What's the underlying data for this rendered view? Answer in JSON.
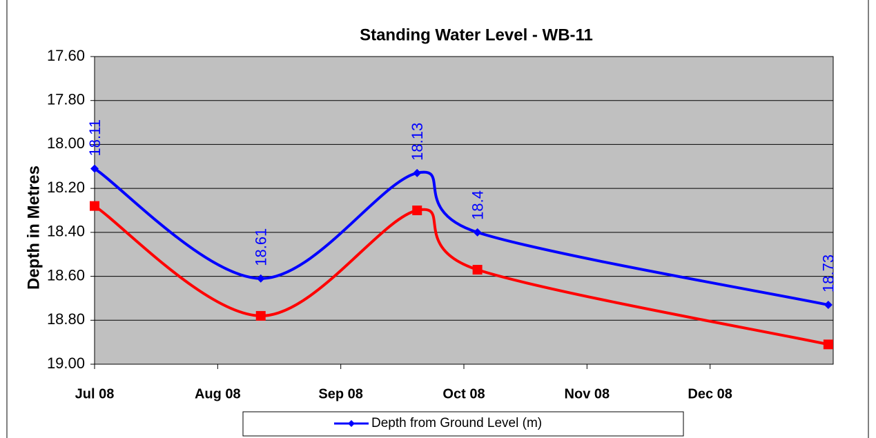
{
  "chart_data": {
    "type": "line",
    "title": "Standing Water Level - WB-11",
    "y_label": "Depth in Metres",
    "x": [
      0,
      1.35,
      2.62,
      3.11,
      5.96
    ],
    "xlim": [
      0,
      6
    ],
    "xticks": [
      {
        "value": 0,
        "label": "Jul 08"
      },
      {
        "value": 1,
        "label": "Aug 08"
      },
      {
        "value": 2,
        "label": "Sep 08"
      },
      {
        "value": 3,
        "label": "Oct 08"
      },
      {
        "value": 4,
        "label": "Nov 08"
      },
      {
        "value": 5,
        "label": "Dec 08"
      }
    ],
    "ylim": [
      17.6,
      19.0
    ],
    "y_inverted": true,
    "yticks": [
      {
        "value": 17.6,
        "label": "17.60"
      },
      {
        "value": 17.8,
        "label": "17.80"
      },
      {
        "value": 18.0,
        "label": "18.00"
      },
      {
        "value": 18.2,
        "label": "18.20"
      },
      {
        "value": 18.4,
        "label": "18.40"
      },
      {
        "value": 18.6,
        "label": "18.60"
      },
      {
        "value": 18.8,
        "label": "18.80"
      },
      {
        "value": 19.0,
        "label": "19.00"
      }
    ],
    "grid": true,
    "series": [
      {
        "name": "Depth from Ground Level (m)",
        "color": "#0000ff",
        "marker": "diamond",
        "values": [
          18.11,
          18.61,
          18.13,
          18.4,
          18.73
        ],
        "show_labels": true
      },
      {
        "color": "#ff0000",
        "marker": "square",
        "values": [
          18.28,
          18.78,
          18.3,
          18.57,
          18.91
        ]
      }
    ],
    "legend": "bottom"
  }
}
